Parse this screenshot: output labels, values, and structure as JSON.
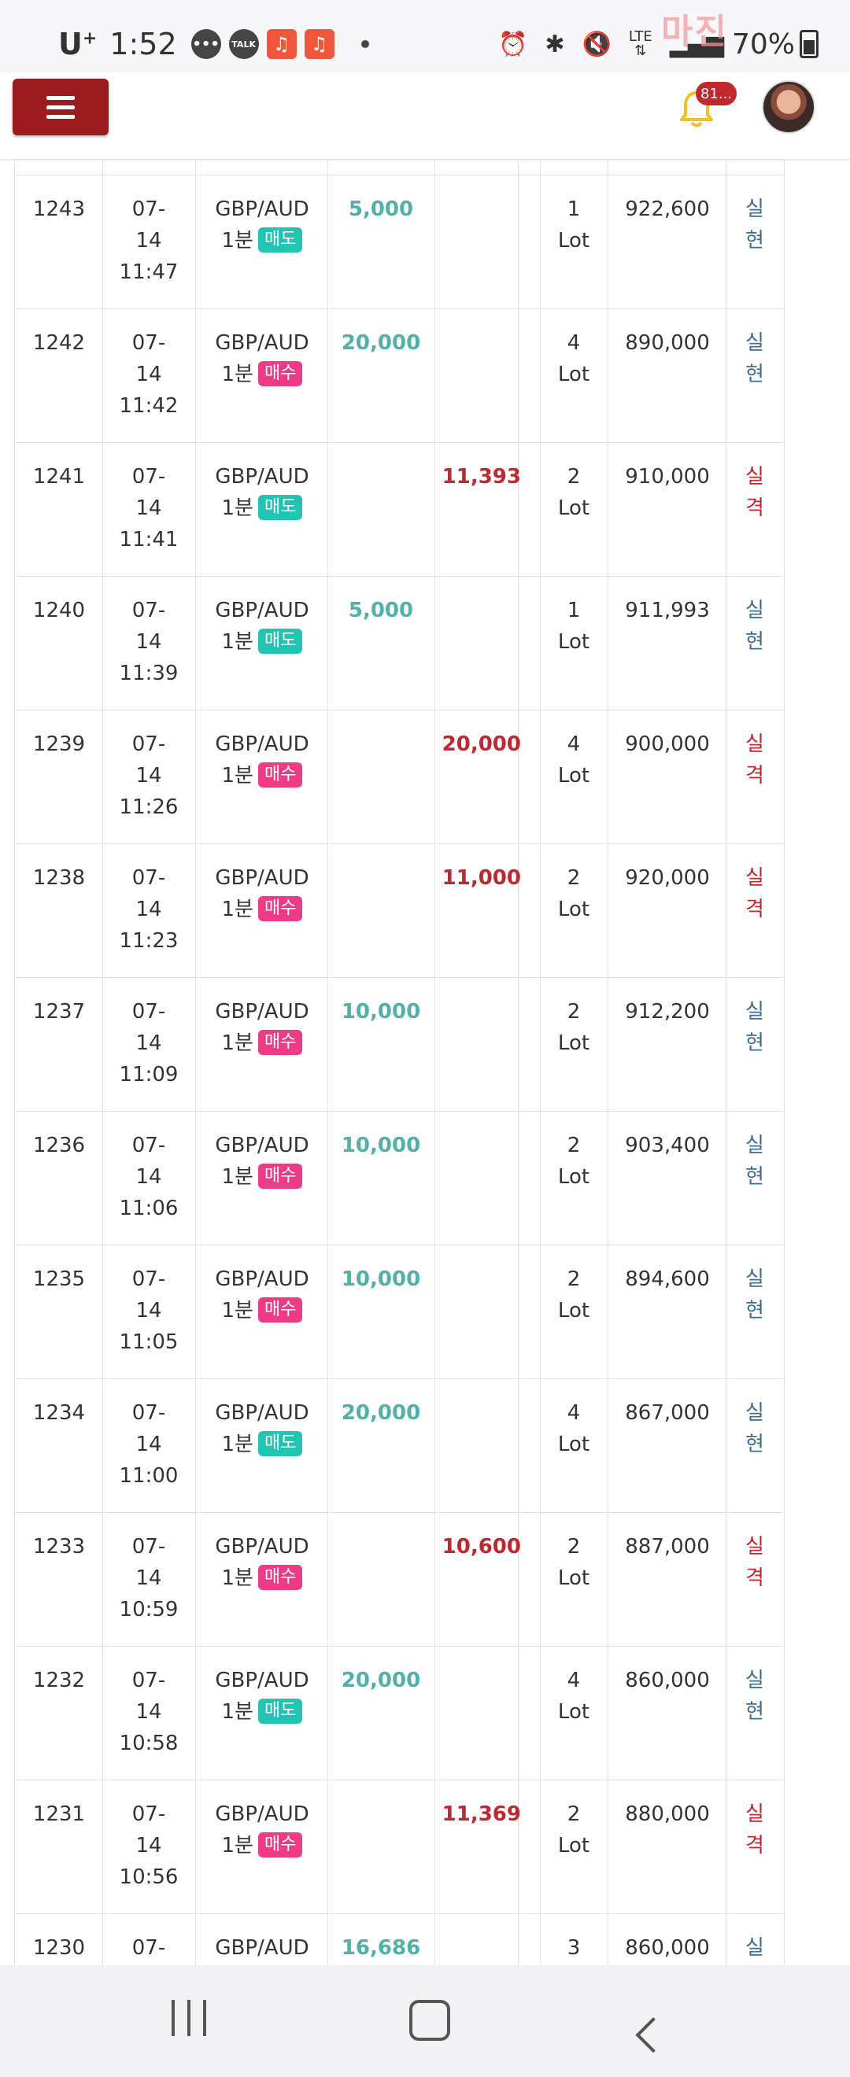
{
  "status_bar": {
    "carrier": "U",
    "carrier_sup": "+",
    "time": "1:52",
    "talk_label": "TALK",
    "network": "LTE",
    "battery": "70%",
    "watermark": "마진"
  },
  "header": {
    "notification_count": "81..."
  },
  "colors": {
    "menu_button": "#9b1b1f",
    "profit": "#4fb1a8",
    "loss": "#c0282d",
    "sell_tag": "#1fc4b3",
    "buy_tag": "#ef3a86",
    "realized_text": "#3b6e92"
  },
  "trades": [
    {
      "no": "1243",
      "month": "07-",
      "day": "14",
      "time": "11:47",
      "pair": "GBP/AUD",
      "interval": "1분",
      "side": "매도",
      "side_type": "sell",
      "profit": "5,000",
      "loss": "",
      "qty": "1",
      "unit": "Lot",
      "balance": "922,600",
      "r1": "실",
      "r2": "현",
      "result": "win"
    },
    {
      "no": "1242",
      "month": "07-",
      "day": "14",
      "time": "11:42",
      "pair": "GBP/AUD",
      "interval": "1분",
      "side": "매수",
      "side_type": "buy",
      "profit": "20,000",
      "loss": "",
      "qty": "4",
      "unit": "Lot",
      "balance": "890,000",
      "r1": "실",
      "r2": "현",
      "result": "win"
    },
    {
      "no": "1241",
      "month": "07-",
      "day": "14",
      "time": "11:41",
      "pair": "GBP/AUD",
      "interval": "1분",
      "side": "매도",
      "side_type": "sell",
      "profit": "",
      "loss": "11,393",
      "qty": "2",
      "unit": "Lot",
      "balance": "910,000",
      "r1": "실",
      "r2": "격",
      "result": "lose"
    },
    {
      "no": "1240",
      "month": "07-",
      "day": "14",
      "time": "11:39",
      "pair": "GBP/AUD",
      "interval": "1분",
      "side": "매도",
      "side_type": "sell",
      "profit": "5,000",
      "loss": "",
      "qty": "1",
      "unit": "Lot",
      "balance": "911,993",
      "r1": "실",
      "r2": "현",
      "result": "win"
    },
    {
      "no": "1239",
      "month": "07-",
      "day": "14",
      "time": "11:26",
      "pair": "GBP/AUD",
      "interval": "1분",
      "side": "매수",
      "side_type": "buy",
      "profit": "",
      "loss": "20,000",
      "qty": "4",
      "unit": "Lot",
      "balance": "900,000",
      "r1": "실",
      "r2": "격",
      "result": "lose"
    },
    {
      "no": "1238",
      "month": "07-",
      "day": "14",
      "time": "11:23",
      "pair": "GBP/AUD",
      "interval": "1분",
      "side": "매수",
      "side_type": "buy",
      "profit": "",
      "loss": "11,000",
      "qty": "2",
      "unit": "Lot",
      "balance": "920,000",
      "r1": "실",
      "r2": "격",
      "result": "lose"
    },
    {
      "no": "1237",
      "month": "07-",
      "day": "14",
      "time": "11:09",
      "pair": "GBP/AUD",
      "interval": "1분",
      "side": "매수",
      "side_type": "buy",
      "profit": "10,000",
      "loss": "",
      "qty": "2",
      "unit": "Lot",
      "balance": "912,200",
      "r1": "실",
      "r2": "현",
      "result": "win"
    },
    {
      "no": "1236",
      "month": "07-",
      "day": "14",
      "time": "11:06",
      "pair": "GBP/AUD",
      "interval": "1분",
      "side": "매수",
      "side_type": "buy",
      "profit": "10,000",
      "loss": "",
      "qty": "2",
      "unit": "Lot",
      "balance": "903,400",
      "r1": "실",
      "r2": "현",
      "result": "win"
    },
    {
      "no": "1235",
      "month": "07-",
      "day": "14",
      "time": "11:05",
      "pair": "GBP/AUD",
      "interval": "1분",
      "side": "매수",
      "side_type": "buy",
      "profit": "10,000",
      "loss": "",
      "qty": "2",
      "unit": "Lot",
      "balance": "894,600",
      "r1": "실",
      "r2": "현",
      "result": "win"
    },
    {
      "no": "1234",
      "month": "07-",
      "day": "14",
      "time": "11:00",
      "pair": "GBP/AUD",
      "interval": "1분",
      "side": "매도",
      "side_type": "sell",
      "profit": "20,000",
      "loss": "",
      "qty": "4",
      "unit": "Lot",
      "balance": "867,000",
      "r1": "실",
      "r2": "현",
      "result": "win"
    },
    {
      "no": "1233",
      "month": "07-",
      "day": "14",
      "time": "10:59",
      "pair": "GBP/AUD",
      "interval": "1분",
      "side": "매수",
      "side_type": "buy",
      "profit": "",
      "loss": "10,600",
      "qty": "2",
      "unit": "Lot",
      "balance": "887,000",
      "r1": "실",
      "r2": "격",
      "result": "lose"
    },
    {
      "no": "1232",
      "month": "07-",
      "day": "14",
      "time": "10:58",
      "pair": "GBP/AUD",
      "interval": "1분",
      "side": "매도",
      "side_type": "sell",
      "profit": "20,000",
      "loss": "",
      "qty": "4",
      "unit": "Lot",
      "balance": "860,000",
      "r1": "실",
      "r2": "현",
      "result": "win"
    },
    {
      "no": "1231",
      "month": "07-",
      "day": "14",
      "time": "10:56",
      "pair": "GBP/AUD",
      "interval": "1분",
      "side": "매수",
      "side_type": "buy",
      "profit": "",
      "loss": "11,369",
      "qty": "2",
      "unit": "Lot",
      "balance": "880,000",
      "r1": "실",
      "r2": "격",
      "result": "lose"
    },
    {
      "no": "1230",
      "month": "07-",
      "day": "",
      "time": "",
      "pair": "GBP/AUD",
      "interval": "",
      "side": "",
      "side_type": "",
      "profit": "16,686",
      "loss": "",
      "qty": "3",
      "unit": "",
      "balance": "860,000",
      "r1": "실",
      "r2": "",
      "result": "win"
    }
  ]
}
